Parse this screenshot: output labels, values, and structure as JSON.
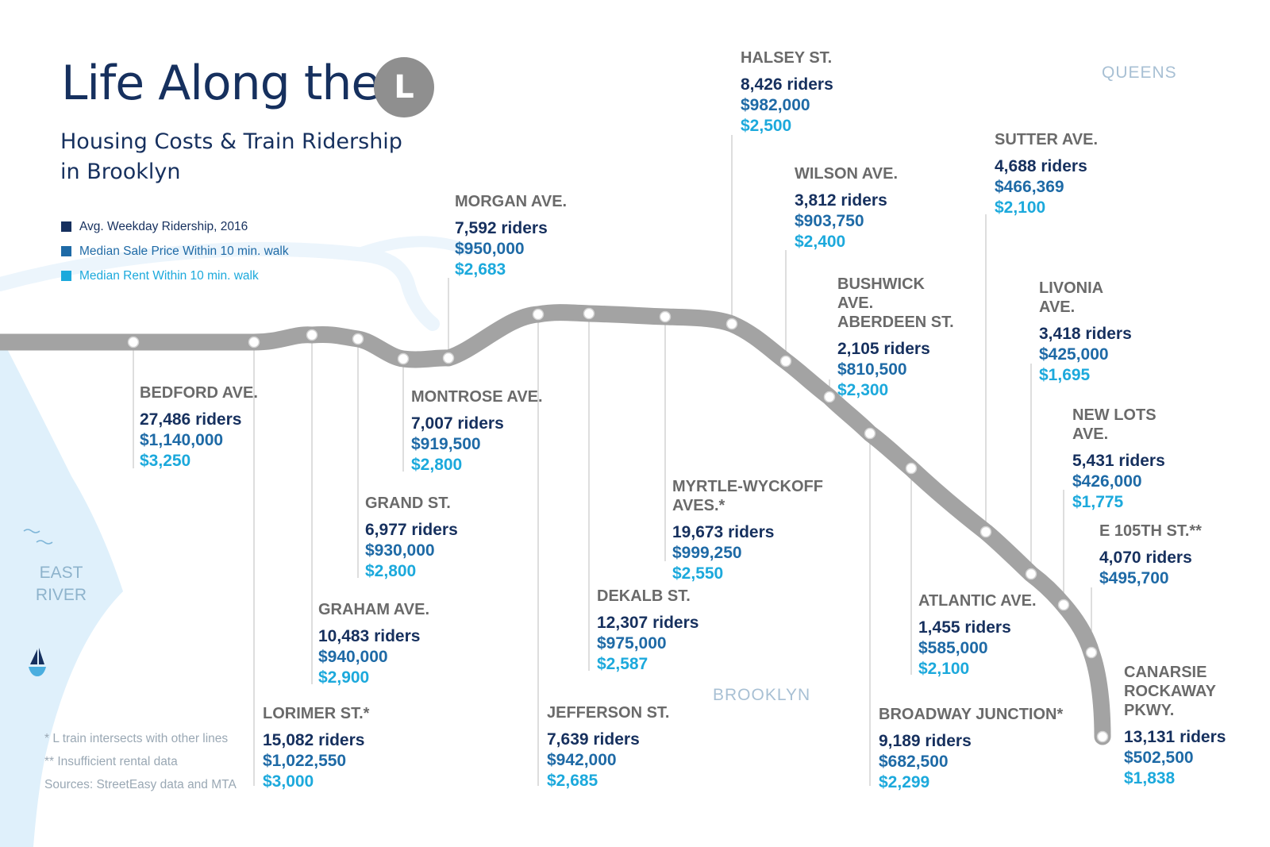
{
  "header": {
    "title": "Life Along the",
    "line_letter": "L",
    "subtitle": "Housing Costs & Train Ridership in Brooklyn"
  },
  "legend": [
    {
      "label": "Avg. Weekday Ridership, 2016",
      "color": "#16305e"
    },
    {
      "label": "Median Sale Price Within 10 min. walk",
      "color": "#1e6aa6"
    },
    {
      "label": "Median Rent Within 10 min. walk",
      "color": "#1ca9dc"
    }
  ],
  "regions": {
    "queens": "QUEENS",
    "brooklyn": "BROOKLYN",
    "river": "EAST RIVER"
  },
  "stations": [
    {
      "name": "BEDFORD AVE.",
      "riders": "27,486 riders",
      "sale": "$1,140,000",
      "rent": "$3,250"
    },
    {
      "name": "LORIMER ST.*",
      "riders": "15,082 riders",
      "sale": "$1,022,550",
      "rent": "$3,000"
    },
    {
      "name": "GRAHAM AVE.",
      "riders": "10,483 riders",
      "sale": "$940,000",
      "rent": "$2,900"
    },
    {
      "name": "GRAND ST.",
      "riders": "6,977 riders",
      "sale": "$930,000",
      "rent": "$2,800"
    },
    {
      "name": "MONTROSE AVE.",
      "riders": "7,007 riders",
      "sale": "$919,500",
      "rent": "$2,800"
    },
    {
      "name": "MORGAN AVE.",
      "riders": "7,592 riders",
      "sale": "$950,000",
      "rent": "$2,683"
    },
    {
      "name": "JEFFERSON ST.",
      "riders": "7,639 riders",
      "sale": "$942,000",
      "rent": "$2,685"
    },
    {
      "name": "DEKALB ST.",
      "riders": "12,307 riders",
      "sale": "$975,000",
      "rent": "$2,587"
    },
    {
      "name": "MYRTLE-WYCKOFF AVES.*",
      "riders": "19,673 riders",
      "sale": "$999,250",
      "rent": "$2,550"
    },
    {
      "name": "HALSEY ST.",
      "riders": "8,426 riders",
      "sale": "$982,000",
      "rent": "$2,500"
    },
    {
      "name": "WILSON AVE.",
      "riders": "3,812 riders",
      "sale": "$903,750",
      "rent": "$2,400"
    },
    {
      "name": "BUSHWICK AVE. ABERDEEN ST.",
      "riders": "2,105 riders",
      "sale": "$810,500",
      "rent": "$2,300"
    },
    {
      "name": "BROADWAY JUNCTION*",
      "riders": "9,189 riders",
      "sale": "$682,500",
      "rent": "$2,299"
    },
    {
      "name": "ATLANTIC AVE.",
      "riders": "1,455 riders",
      "sale": "$585,000",
      "rent": "$2,100"
    },
    {
      "name": "SUTTER AVE.",
      "riders": "4,688 riders",
      "sale": "$466,369",
      "rent": "$2,100"
    },
    {
      "name": "LIVONIA AVE.",
      "riders": "3,418 riders",
      "sale": "$425,000",
      "rent": "$1,695"
    },
    {
      "name": "NEW LOTS AVE.",
      "riders": "5,431 riders",
      "sale": "$426,000",
      "rent": "$1,775"
    },
    {
      "name": "E 105TH ST.**",
      "riders": "4,070 riders",
      "sale": "$495,700",
      "rent": ""
    },
    {
      "name": "CANARSIE ROCKAWAY PKWY.",
      "riders": "13,131 riders",
      "sale": "$502,500",
      "rent": "$1,838"
    }
  ],
  "notes": [
    "* L train intersects with other lines",
    "** Insufficient rental data",
    "Sources: StreetEasy data and MTA"
  ]
}
